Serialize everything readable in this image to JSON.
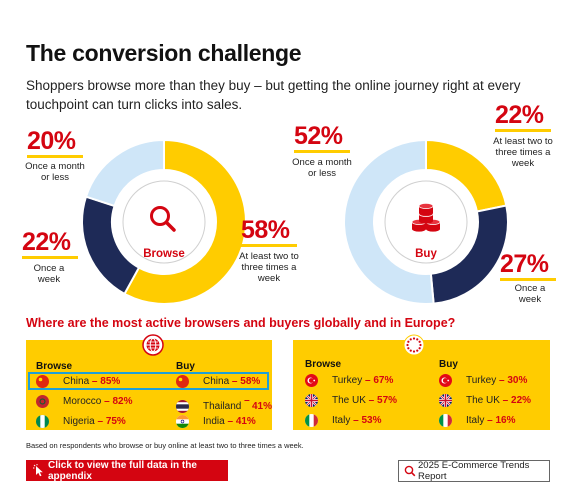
{
  "header": {
    "title": "The conversion challenge",
    "subtitle": "Shoppers browse more than they buy – but getting the online journey right at every touchpoint can turn clicks into sales."
  },
  "chart_data": [
    {
      "type": "pie",
      "center_label": "Browse",
      "center_icon": "magnifier-icon",
      "slices": [
        {
          "label": "At least two to three times a week",
          "value": 58,
          "display": "58%",
          "color": "#ffcc00"
        },
        {
          "label": "Once a week",
          "value": 22,
          "display": "22%",
          "color": "#1e2a57"
        },
        {
          "label": "Once a month or less",
          "value": 20,
          "display": "20%",
          "color": "#cfe6f8"
        }
      ]
    },
    {
      "type": "pie",
      "center_label": "Buy",
      "center_icon": "coins-icon",
      "slices": [
        {
          "label": "At least two to three times a week",
          "value": 22,
          "display": "22%",
          "color": "#ffcc00"
        },
        {
          "label": "Once a week",
          "value": 27,
          "display": "27%",
          "color": "#1e2a57"
        },
        {
          "label": "Once a month or less",
          "value": 52,
          "display": "52%",
          "color": "#cfe6f8"
        }
      ]
    }
  ],
  "question": "Where are the most active browsers and buyers globally and in Europe?",
  "rankings": {
    "global": {
      "icon": "globe-icon",
      "browse_label": "Browse",
      "buy_label": "Buy",
      "browse": [
        {
          "country": "China",
          "value": "85%",
          "flag": "china-flag-icon"
        },
        {
          "country": "Morocco",
          "value": "82%",
          "flag": "morocco-flag-icon"
        },
        {
          "country": "Nigeria",
          "value": "75%",
          "flag": "nigeria-flag-icon"
        }
      ],
      "buy": [
        {
          "country": "China",
          "value": "58%",
          "flag": "china-flag-icon"
        },
        {
          "country": "Thailand",
          "value": "41%",
          "flag": "thailand-flag-icon"
        },
        {
          "country": "India",
          "value": "41%",
          "flag": "india-flag-icon"
        }
      ]
    },
    "europe": {
      "icon": "eu-stars-icon",
      "browse_label": "Browse",
      "buy_label": "Buy",
      "browse": [
        {
          "country": "Turkey",
          "value": "67%",
          "flag": "turkey-flag-icon"
        },
        {
          "country": "The UK",
          "value": "57%",
          "flag": "uk-flag-icon"
        },
        {
          "country": "Italy",
          "value": "53%",
          "flag": "italy-flag-icon"
        }
      ],
      "buy": [
        {
          "country": "Turkey",
          "value": "30%",
          "flag": "turkey-flag-icon"
        },
        {
          "country": "The UK",
          "value": "22%",
          "flag": "uk-flag-icon"
        },
        {
          "country": "Italy",
          "value": "16%",
          "flag": "italy-flag-icon"
        }
      ]
    }
  },
  "footnote": "Based on respondents who browse or buy online at least two to three times a week.",
  "cta": {
    "label": "Click to view the full data in the appendix",
    "icon": "cursor-click-icon"
  },
  "report_link": {
    "label": "2025 E-Commerce Trends Report",
    "icon": "search-icon"
  },
  "colors": {
    "red": "#d40511",
    "yellow": "#ffcc00",
    "navy": "#1e2a57",
    "light_blue": "#cfe6f8",
    "highlight": "#1f9fd6"
  }
}
